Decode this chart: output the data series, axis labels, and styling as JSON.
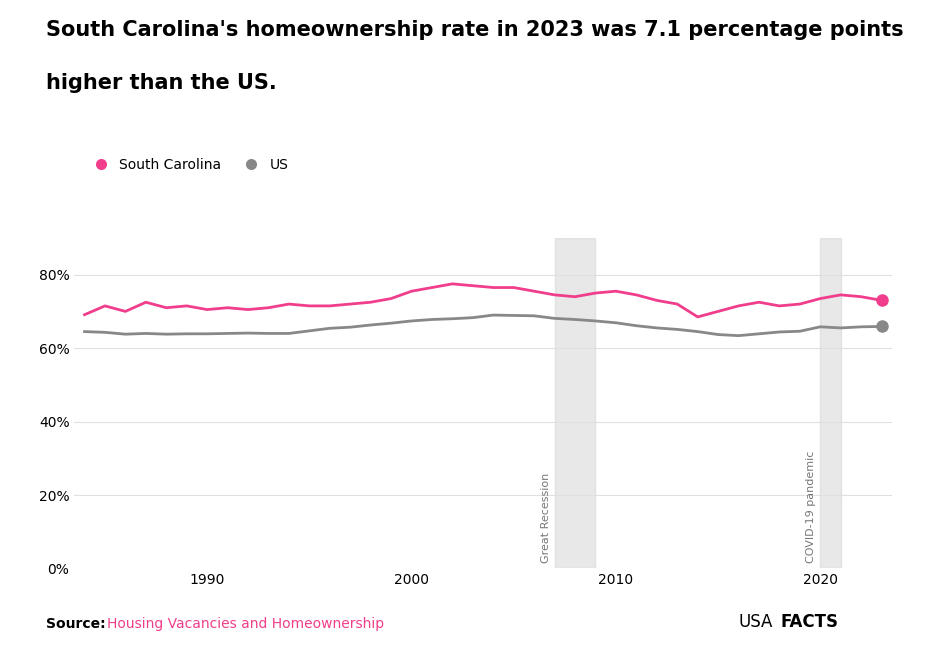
{
  "title_line1": "South Carolina's homeownership rate in 2023 was 7.1 percentage points",
  "title_line2": "higher than the US.",
  "sc_data": {
    "years": [
      1984,
      1985,
      1986,
      1987,
      1988,
      1989,
      1990,
      1991,
      1992,
      1993,
      1994,
      1995,
      1996,
      1997,
      1998,
      1999,
      2000,
      2001,
      2002,
      2003,
      2004,
      2005,
      2006,
      2007,
      2008,
      2009,
      2010,
      2011,
      2012,
      2013,
      2014,
      2015,
      2016,
      2017,
      2018,
      2019,
      2020,
      2021,
      2022,
      2023
    ],
    "values": [
      69.1,
      71.5,
      70.0,
      72.5,
      71.0,
      71.5,
      70.5,
      71.0,
      70.5,
      71.0,
      72.0,
      71.5,
      71.5,
      72.0,
      72.5,
      73.5,
      75.5,
      76.5,
      77.5,
      77.0,
      76.5,
      76.5,
      75.5,
      74.5,
      74.0,
      75.0,
      75.5,
      74.5,
      73.0,
      72.0,
      68.5,
      70.0,
      71.5,
      72.5,
      71.5,
      72.0,
      73.5,
      74.5,
      74.0,
      73.0
    ]
  },
  "us_data": {
    "years": [
      1984,
      1985,
      1986,
      1987,
      1988,
      1989,
      1990,
      1991,
      1992,
      1993,
      1994,
      1995,
      1996,
      1997,
      1998,
      1999,
      2000,
      2001,
      2002,
      2003,
      2004,
      2005,
      2006,
      2007,
      2008,
      2009,
      2010,
      2011,
      2012,
      2013,
      2014,
      2015,
      2016,
      2017,
      2018,
      2019,
      2020,
      2021,
      2022,
      2023
    ],
    "values": [
      64.5,
      64.3,
      63.8,
      64.0,
      63.8,
      63.9,
      63.9,
      64.0,
      64.1,
      64.0,
      64.0,
      64.7,
      65.4,
      65.7,
      66.3,
      66.8,
      67.4,
      67.8,
      68.0,
      68.3,
      69.0,
      68.9,
      68.8,
      68.1,
      67.8,
      67.4,
      66.9,
      66.1,
      65.5,
      65.1,
      64.5,
      63.7,
      63.4,
      63.9,
      64.4,
      64.6,
      65.8,
      65.5,
      65.8,
      65.9
    ]
  },
  "sc_color": "#f03e8c",
  "us_color": "#888888",
  "recession_span": [
    2007,
    2009
  ],
  "covid_span": [
    2020,
    2021
  ],
  "recession_label": "Great Recession",
  "covid_label": "COVID-19 pandemic",
  "shade_color": "#d3d3d3",
  "shade_alpha": 0.5,
  "yticks": [
    0,
    20,
    40,
    60,
    80
  ],
  "ytick_labels": [
    "0%",
    "20%",
    "40%",
    "60%",
    "80%"
  ],
  "xticks": [
    1990,
    2000,
    2010,
    2020
  ],
  "ylim": [
    0,
    90
  ],
  "xlim": [
    1984,
    2023
  ],
  "legend_sc": "South Carolina",
  "legend_us": "US",
  "source_label": "Source:",
  "source_text": "Housing Vacancies and Homeownership",
  "usafacts_regular": "USA",
  "usafacts_bold": "FACTS",
  "background_color": "#ffffff",
  "line_width": 2.0,
  "marker_size": 8,
  "title_fontsize": 15,
  "annotation_fontsize": 8,
  "legend_fontsize": 10,
  "source_fontsize": 10,
  "tick_fontsize": 10
}
